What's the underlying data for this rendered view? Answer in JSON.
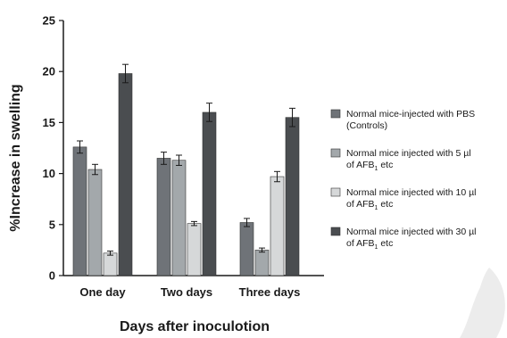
{
  "chart_data": {
    "type": "bar",
    "categories": [
      "One day",
      "Two days",
      "Three days"
    ],
    "series": [
      {
        "name": "Normal mice-injected with PBS (Controls)",
        "values": [
          12.6,
          11.5,
          5.2
        ],
        "errors": [
          0.6,
          0.6,
          0.4
        ],
        "color": "#6f7378"
      },
      {
        "name": "Normal mice injected with 5 µl of AFB1 etc",
        "values": [
          10.4,
          11.3,
          2.5
        ],
        "errors": [
          0.5,
          0.5,
          0.2
        ],
        "color": "#a3a8ab"
      },
      {
        "name": "Normal mice injected with 10 µl of AFB1 etc",
        "values": [
          2.2,
          5.1,
          9.7
        ],
        "errors": [
          0.2,
          0.2,
          0.5
        ],
        "color": "#d6d8d9"
      },
      {
        "name": "Normal mice injected with 30 µl of AFB1 etc",
        "values": [
          19.8,
          16.0,
          15.5
        ],
        "errors": [
          0.9,
          0.9,
          0.9
        ],
        "color": "#4a4d50"
      }
    ],
    "xlabel": "Days after inoculotion",
    "ylabel": "%Increase in swelling",
    "ylim": [
      0,
      25
    ],
    "yticks": [
      0,
      5,
      10,
      15,
      20,
      25
    ],
    "grid": false,
    "legend_position": "right",
    "legend": [
      {
        "line1": "Normal mice-injected with PBS",
        "line2": "(Controls)"
      },
      {
        "line1": "Normal mice injected with 5 µl",
        "line2": "of AFB",
        "sub": "1",
        "tail": " etc"
      },
      {
        "line1": "Normal mice injected with 10 µl",
        "line2": "of AFB",
        "sub": "1",
        "tail": " etc"
      },
      {
        "line1": "Normal mice injected with 30 µl",
        "line2": "of AFB",
        "sub": "1",
        "tail": " etc"
      }
    ]
  }
}
